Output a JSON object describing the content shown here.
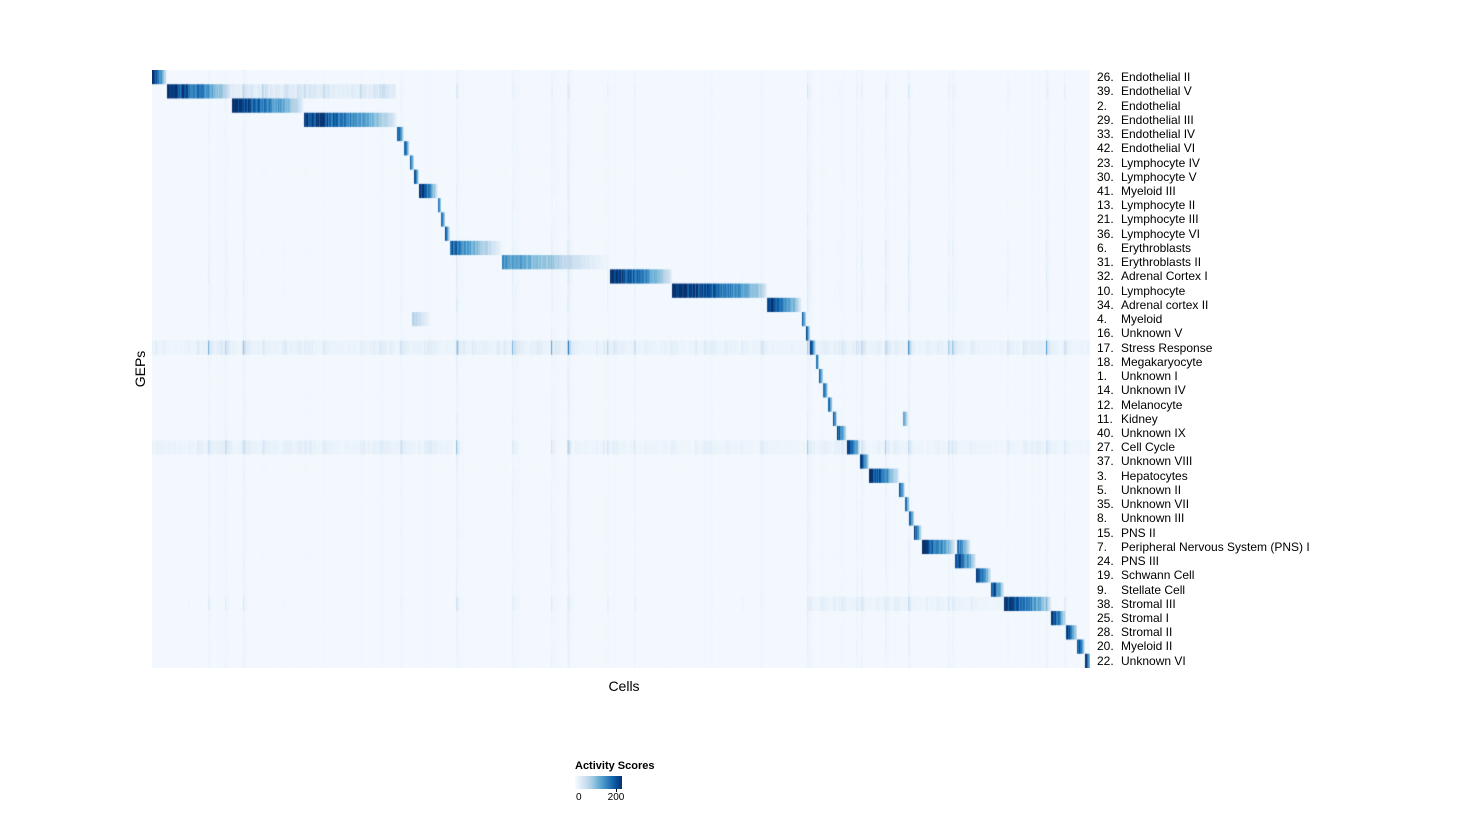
{
  "axes": {
    "x_label": "Cells",
    "y_label": "GEPs"
  },
  "legend": {
    "title": "Activity Scores",
    "min_label": "0",
    "max_label": "200"
  },
  "chart_data": {
    "type": "heatmap",
    "title": "",
    "xlabel": "Cells",
    "ylabel": "GEPs",
    "value_label": "Activity Scores",
    "value_range": [
      0,
      200
    ],
    "legend_position": "bottom-left",
    "grid": false,
    "color_scale": [
      "#f7fbff",
      "#deebf7",
      "#c6dbef",
      "#9ecae1",
      "#6baed6",
      "#4292c6",
      "#2171b5",
      "#08519c",
      "#08306b"
    ],
    "rows_note": "blocks = [start_fraction, end_fraction, peak_intensity, fade_exponent?] of high-activity cell ranges along x; broad = faint widespread activity ranges; stripe = column-noise sensitivity",
    "rows": [
      {
        "num": "26.",
        "name": "Endothelial II",
        "blocks": [
          [
            0.0,
            0.015,
            1.0
          ]
        ]
      },
      {
        "num": "39.",
        "name": "Endothelial V",
        "blocks": [
          [
            0.015,
            0.085,
            1.0
          ]
        ],
        "broad": [
          [
            0.085,
            0.26,
            0.22
          ]
        ],
        "stripe": 0.12
      },
      {
        "num": "2.",
        "name": "Endothelial",
        "blocks": [
          [
            0.085,
            0.161,
            1.0
          ]
        ]
      },
      {
        "num": "29.",
        "name": "Endothelial III",
        "blocks": [
          [
            0.161,
            0.261,
            0.95
          ]
        ]
      },
      {
        "num": "33.",
        "name": "Endothelial IV",
        "blocks": [
          [
            0.261,
            0.268,
            0.9
          ]
        ]
      },
      {
        "num": "42.",
        "name": "Endothelial VI",
        "blocks": [
          [
            0.268,
            0.274,
            0.85
          ]
        ]
      },
      {
        "num": "23.",
        "name": "Lymphocyte IV",
        "blocks": [
          [
            0.274,
            0.279,
            0.85
          ]
        ]
      },
      {
        "num": "30.",
        "name": "Lymphocyte V",
        "blocks": [
          [
            0.279,
            0.284,
            0.85
          ]
        ]
      },
      {
        "num": "41.",
        "name": "Myeloid III",
        "blocks": [
          [
            0.284,
            0.304,
            1.0
          ]
        ]
      },
      {
        "num": "13.",
        "name": "Lymphocyte II",
        "blocks": [
          [
            0.304,
            0.308,
            0.9
          ]
        ]
      },
      {
        "num": "21.",
        "name": "Lymphocyte III",
        "blocks": [
          [
            0.308,
            0.312,
            0.9
          ]
        ]
      },
      {
        "num": "36.",
        "name": "Lymphocyte VI",
        "blocks": [
          [
            0.312,
            0.317,
            0.9
          ]
        ]
      },
      {
        "num": "6.",
        "name": "Erythroblasts",
        "blocks": [
          [
            0.317,
            0.373,
            0.8,
            0.9
          ]
        ],
        "stripe": 0.1
      },
      {
        "num": "31.",
        "name": "Erythroblasts II",
        "blocks": [
          [
            0.373,
            0.488,
            0.62,
            1.1
          ]
        ],
        "stripe": 0.1
      },
      {
        "num": "32.",
        "name": "Adrenal Cortex I",
        "blocks": [
          [
            0.488,
            0.554,
            1.0
          ]
        ],
        "stripe": 0.1
      },
      {
        "num": "10.",
        "name": "Lymphocyte",
        "blocks": [
          [
            0.554,
            0.655,
            1.0,
            0.45
          ]
        ],
        "stripe": 0.1
      },
      {
        "num": "34.",
        "name": "Adrenal cortex II",
        "blocks": [
          [
            0.655,
            0.692,
            1.0
          ]
        ],
        "stripe": 0.1
      },
      {
        "num": "4.",
        "name": "Myeloid",
        "blocks": [
          [
            0.692,
            0.697,
            0.9
          ],
          [
            0.277,
            0.296,
            0.3,
            1.0
          ]
        ]
      },
      {
        "num": "16.",
        "name": "Unknown V",
        "blocks": [
          [
            0.697,
            0.701,
            0.85
          ]
        ]
      },
      {
        "num": "17.",
        "name": "Stress Response",
        "blocks": [
          [
            0.701,
            0.707,
            0.9
          ]
        ],
        "broad": [
          [
            0.0,
            1.0,
            0.1
          ]
        ],
        "stripe": 0.5
      },
      {
        "num": "18.",
        "name": "Megakaryocyte",
        "blocks": [
          [
            0.707,
            0.711,
            0.85
          ]
        ]
      },
      {
        "num": "1.",
        "name": "Unknown I",
        "blocks": [
          [
            0.711,
            0.715,
            0.85
          ]
        ]
      },
      {
        "num": "14.",
        "name": "Unknown IV",
        "blocks": [
          [
            0.715,
            0.72,
            0.85
          ]
        ]
      },
      {
        "num": "12.",
        "name": "Melanocyte",
        "blocks": [
          [
            0.72,
            0.725,
            0.9
          ]
        ]
      },
      {
        "num": "11.",
        "name": "Kidney",
        "blocks": [
          [
            0.725,
            0.73,
            0.9
          ],
          [
            0.8,
            0.806,
            0.5
          ]
        ]
      },
      {
        "num": "40.",
        "name": "Unknown IX",
        "blocks": [
          [
            0.73,
            0.74,
            0.9
          ]
        ]
      },
      {
        "num": "27.",
        "name": "Cell Cycle",
        "blocks": [
          [
            0.74,
            0.754,
            0.95
          ]
        ],
        "broad": [
          [
            0.0,
            0.32,
            0.1
          ],
          [
            0.45,
            1.0,
            0.07
          ]
        ],
        "stripe": 0.3
      },
      {
        "num": "37.",
        "name": "Unknown VIII",
        "blocks": [
          [
            0.754,
            0.764,
            0.95
          ]
        ]
      },
      {
        "num": "3.",
        "name": "Hepatocytes",
        "blocks": [
          [
            0.764,
            0.796,
            1.0
          ]
        ]
      },
      {
        "num": "5.",
        "name": "Unknown II",
        "blocks": [
          [
            0.796,
            0.802,
            0.9
          ]
        ]
      },
      {
        "num": "35.",
        "name": "Unknown VII",
        "blocks": [
          [
            0.802,
            0.807,
            0.85
          ]
        ]
      },
      {
        "num": "8.",
        "name": "Unknown III",
        "blocks": [
          [
            0.807,
            0.812,
            0.85
          ]
        ]
      },
      {
        "num": "15.",
        "name": "PNS II",
        "blocks": [
          [
            0.812,
            0.82,
            0.9
          ]
        ]
      },
      {
        "num": "7.",
        "name": "Peripheral Nervous System (PNS) I",
        "blocks": [
          [
            0.82,
            0.856,
            1.0
          ],
          [
            0.858,
            0.872,
            0.7
          ]
        ]
      },
      {
        "num": "24.",
        "name": "PNS III",
        "blocks": [
          [
            0.856,
            0.878,
            0.95
          ]
        ]
      },
      {
        "num": "19.",
        "name": "Schwann Cell",
        "blocks": [
          [
            0.878,
            0.894,
            0.95
          ]
        ]
      },
      {
        "num": "9.",
        "name": "Stellate Cell",
        "blocks": [
          [
            0.894,
            0.908,
            0.95
          ]
        ]
      },
      {
        "num": "38.",
        "name": "Stromal III",
        "blocks": [
          [
            0.908,
            0.958,
            0.92,
            0.5
          ]
        ],
        "broad": [
          [
            0.7,
            0.908,
            0.08
          ]
        ],
        "stripe": 0.18
      },
      {
        "num": "25.",
        "name": "Stromal I",
        "blocks": [
          [
            0.958,
            0.974,
            1.0
          ]
        ]
      },
      {
        "num": "28.",
        "name": "Stromal II",
        "blocks": [
          [
            0.974,
            0.986,
            1.0
          ]
        ]
      },
      {
        "num": "20.",
        "name": "Myeloid II",
        "blocks": [
          [
            0.986,
            0.994,
            0.95
          ]
        ]
      },
      {
        "num": "22.",
        "name": "Unknown VI",
        "blocks": [
          [
            0.994,
            1.0,
            1.0
          ]
        ]
      }
    ]
  }
}
